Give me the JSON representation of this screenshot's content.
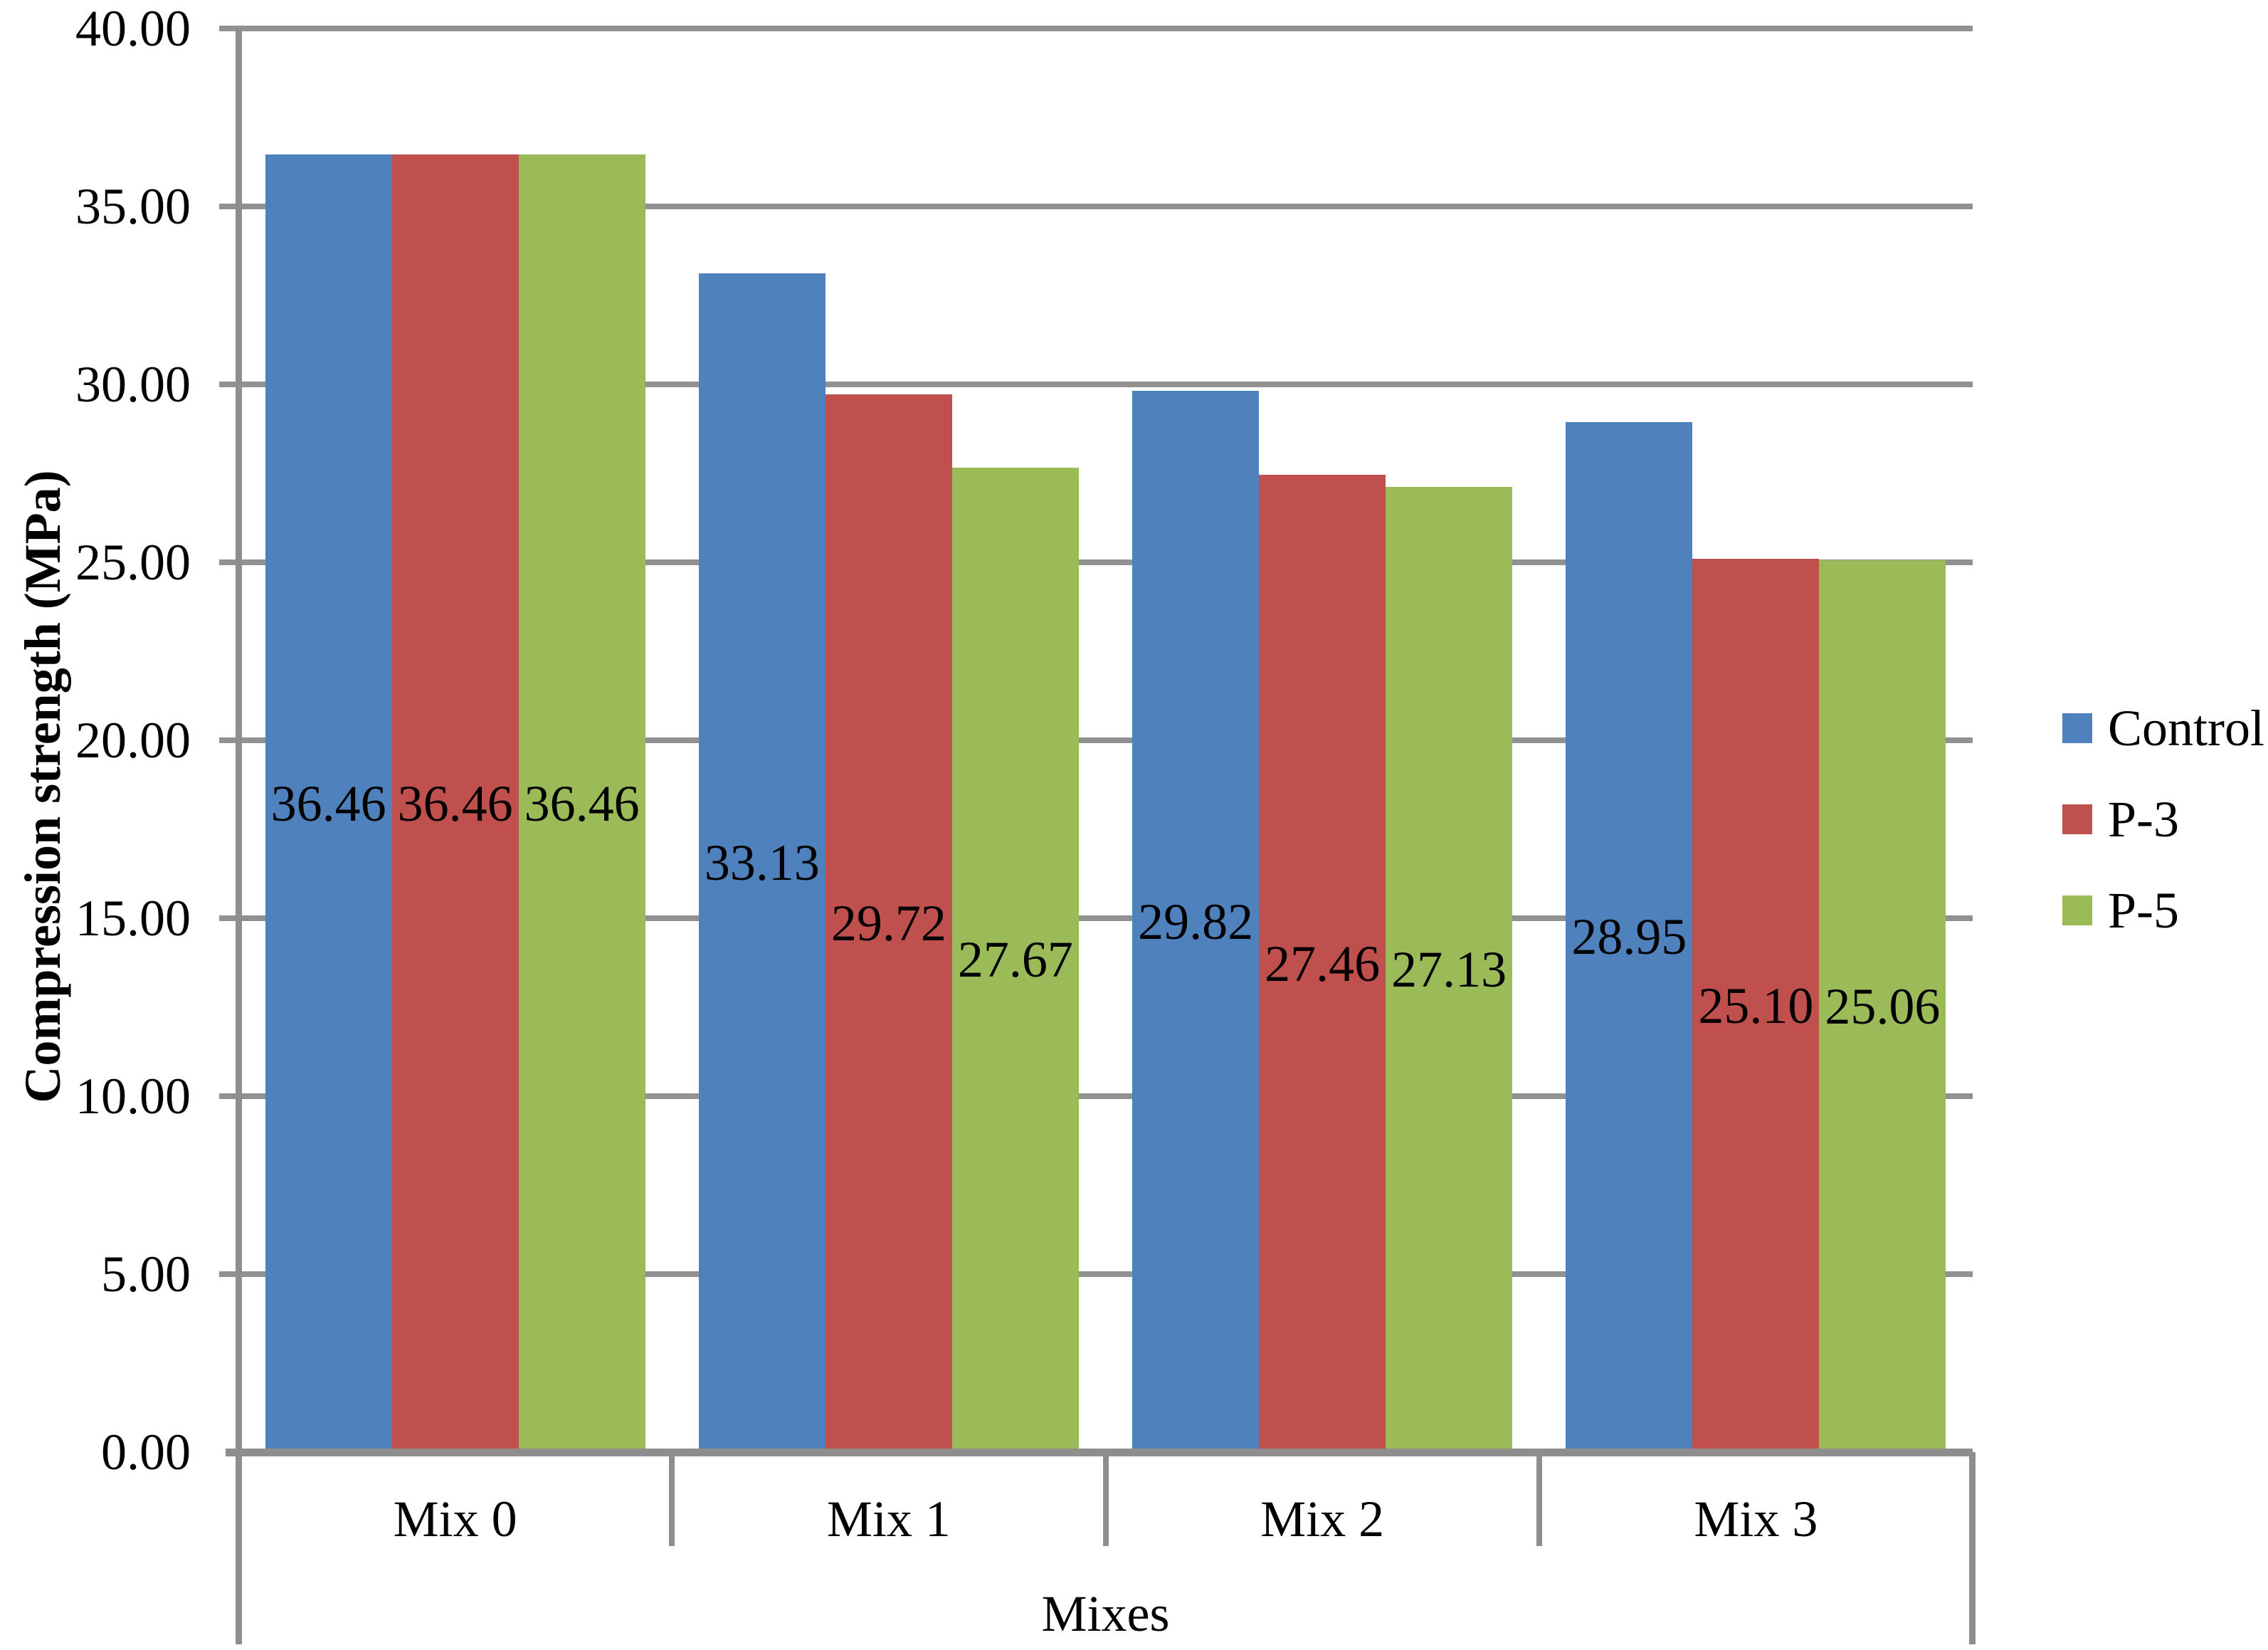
{
  "chart_data": {
    "type": "bar",
    "title": "",
    "xlabel": "Mixes",
    "ylabel": "Compression strength (MPa)",
    "categories": [
      "Mix 0",
      "Mix 1",
      "Mix 2",
      "Mix 3"
    ],
    "series": [
      {
        "name": "Control",
        "color": "#4F81BD",
        "values": [
          36.46,
          33.13,
          29.82,
          28.95
        ],
        "labels": [
          "36.46",
          "33.13",
          "29.82",
          "28.95"
        ]
      },
      {
        "name": "P-3",
        "color": "#C0504D",
        "values": [
          36.46,
          29.72,
          27.46,
          25.1
        ],
        "labels": [
          "36.46",
          "29.72",
          "27.46",
          "25.10"
        ]
      },
      {
        "name": "P-5",
        "color": "#9BBB59",
        "values": [
          36.46,
          27.67,
          27.13,
          25.06
        ],
        "labels": [
          "36.46",
          "27.67",
          "27.13",
          "25.06"
        ]
      }
    ],
    "ylim": [
      0,
      40
    ],
    "yticks": [
      {
        "value": 0,
        "label": "0.00"
      },
      {
        "value": 5,
        "label": "5.00"
      },
      {
        "value": 10,
        "label": "10.00"
      },
      {
        "value": 15,
        "label": "15.00"
      },
      {
        "value": 20,
        "label": "20.00"
      },
      {
        "value": 25,
        "label": "25.00"
      },
      {
        "value": 30,
        "label": "30.00"
      },
      {
        "value": 35,
        "label": "35.00"
      },
      {
        "value": 40,
        "label": "40.00"
      }
    ],
    "grid": true,
    "legend_position": "right",
    "data_labels": "center",
    "colors": {
      "gridline": "#919191",
      "axis": "#8E8E8E",
      "text": "#000000",
      "background": "#FFFFFF"
    }
  }
}
